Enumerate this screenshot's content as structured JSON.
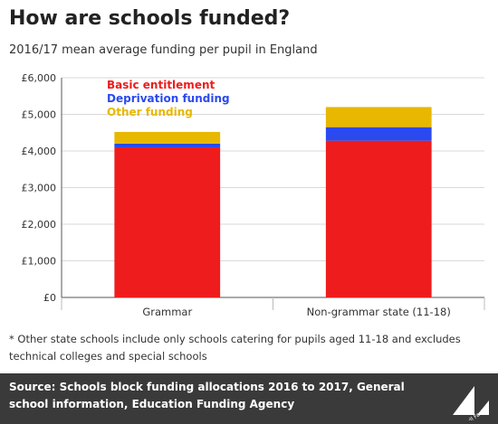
{
  "header": {
    "title": "How are schools funded?",
    "subtitle": "2016/17 mean average funding per pupil in England"
  },
  "chart_data": {
    "type": "bar",
    "stacked": true,
    "categories": [
      "Grammar",
      "Non-grammar state (11-18)"
    ],
    "series": [
      {
        "name": "Basic entitlement",
        "values": [
          4100,
          4280
        ],
        "color": "#ee1c1c"
      },
      {
        "name": "Deprivation funding",
        "values": [
          100,
          370
        ],
        "color": "#2a49ee"
      },
      {
        "name": "Other funding",
        "values": [
          320,
          550
        ],
        "color": "#e8b700"
      }
    ],
    "yticks": [
      "£0",
      "£1,000",
      "£2,000",
      "£3,000",
      "£4,000",
      "£5,000",
      "£6,000"
    ],
    "ylim": [
      0,
      6000
    ],
    "legend_position": "top-left"
  },
  "footnote": "* Other state schools include only schools catering for pupils aged 11-18 and excludes technical colleges and special schools",
  "footer": {
    "source_label": "Source:",
    "source_text": "Schools block funding allocations 2016 to 2017, General school information, Education Funding Agency",
    "logo_text": "Full Fact",
    "logo_color": "#ffffff"
  }
}
